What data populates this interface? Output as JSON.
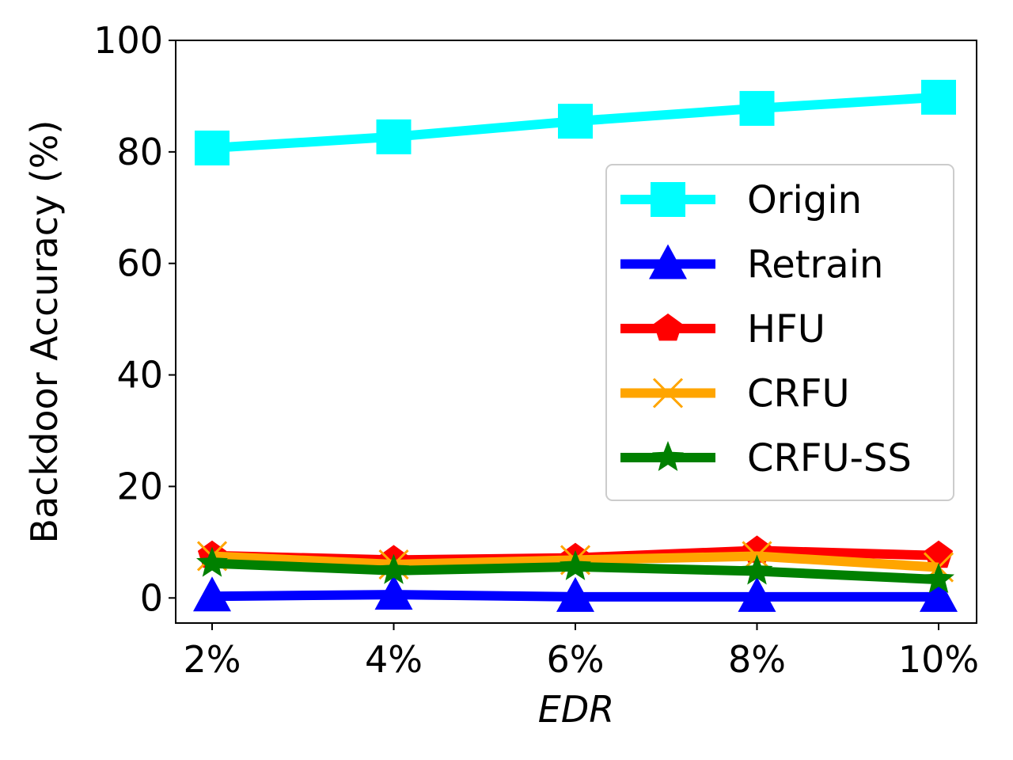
{
  "chart_data": {
    "type": "line",
    "categories": [
      "2%",
      "4%",
      "6%",
      "8%",
      "10%"
    ],
    "xlabel": "EDR",
    "ylabel": "Backdoor Accuracy (%)",
    "ylim": [
      -4.5,
      100
    ],
    "yticks": [
      0,
      20,
      40,
      60,
      80,
      100
    ],
    "grid": false,
    "legend": "center-right",
    "series": [
      {
        "name": "Origin",
        "color": "#00ffff",
        "marker": "square",
        "values": [
          80.7,
          82.7,
          85.5,
          87.8,
          89.8
        ]
      },
      {
        "name": "Retrain",
        "color": "#0000ff",
        "marker": "triangle",
        "values": [
          0.3,
          0.6,
          0.2,
          0.2,
          0.2
        ]
      },
      {
        "name": "HFU",
        "color": "#ff0000",
        "marker": "pentagon",
        "values": [
          7.6,
          6.8,
          7.2,
          8.5,
          7.6
        ]
      },
      {
        "name": "CRFU",
        "color": "#ffa500",
        "marker": "x",
        "values": [
          7.5,
          6.0,
          6.8,
          7.5,
          5.5
        ]
      },
      {
        "name": "CRFU-SS",
        "color": "#008000",
        "marker": "star",
        "values": [
          6.2,
          4.9,
          5.6,
          4.8,
          3.3
        ]
      }
    ]
  }
}
